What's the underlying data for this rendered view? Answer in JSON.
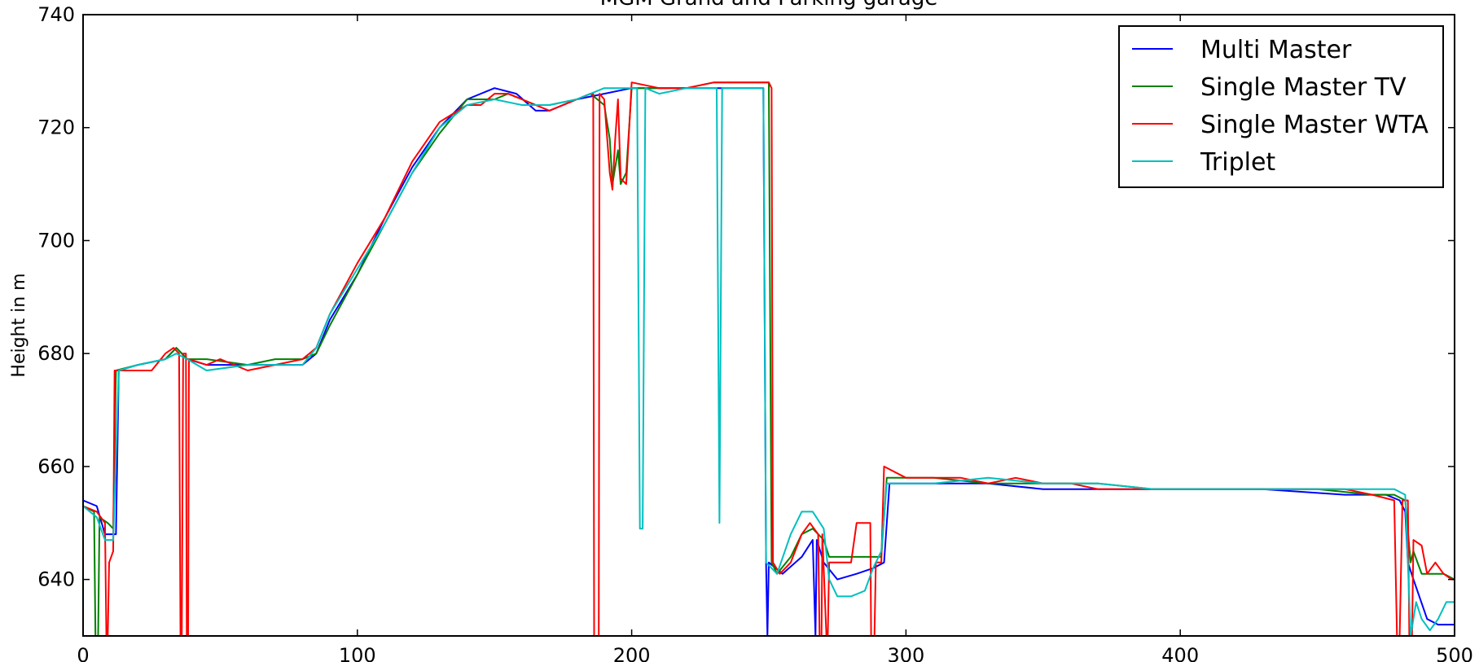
{
  "chart_data": {
    "type": "line",
    "title": "MGM Grand and Parking garage",
    "xlabel": "",
    "ylabel": "Height in m",
    "xlim": [
      0,
      500
    ],
    "ylim": [
      630,
      740
    ],
    "xticks": [
      0,
      100,
      200,
      300,
      400,
      500
    ],
    "yticks": [
      640,
      660,
      680,
      700,
      720,
      740
    ],
    "grid": false,
    "legend_position": "top-right",
    "series": [
      {
        "name": "Multi Master",
        "color": "#0000ff",
        "points": [
          [
            0,
            654
          ],
          [
            5,
            653
          ],
          [
            8,
            648
          ],
          [
            12,
            648
          ],
          [
            13,
            677
          ],
          [
            20,
            678
          ],
          [
            30,
            679
          ],
          [
            34,
            681
          ],
          [
            38,
            679
          ],
          [
            45,
            678
          ],
          [
            60,
            678
          ],
          [
            80,
            678
          ],
          [
            85,
            680
          ],
          [
            90,
            686
          ],
          [
            100,
            694
          ],
          [
            110,
            704
          ],
          [
            120,
            713
          ],
          [
            130,
            720
          ],
          [
            140,
            725
          ],
          [
            150,
            727
          ],
          [
            158,
            726
          ],
          [
            165,
            723
          ],
          [
            170,
            723
          ],
          [
            180,
            725
          ],
          [
            190,
            726
          ],
          [
            200,
            727
          ],
          [
            220,
            727
          ],
          [
            240,
            727
          ],
          [
            248,
            727
          ],
          [
            249,
            643
          ],
          [
            249.5,
            630
          ],
          [
            250,
            643
          ],
          [
            255,
            641
          ],
          [
            262,
            644
          ],
          [
            266,
            647
          ],
          [
            267,
            630
          ],
          [
            267.5,
            647
          ],
          [
            270,
            643
          ],
          [
            275,
            640
          ],
          [
            282,
            641
          ],
          [
            288,
            642
          ],
          [
            292,
            643
          ],
          [
            294,
            657
          ],
          [
            310,
            657
          ],
          [
            330,
            657
          ],
          [
            350,
            656
          ],
          [
            370,
            656
          ],
          [
            390,
            656
          ],
          [
            410,
            656
          ],
          [
            430,
            656
          ],
          [
            460,
            655
          ],
          [
            475,
            655
          ],
          [
            480,
            654
          ],
          [
            482,
            652
          ],
          [
            483,
            643
          ],
          [
            485,
            640
          ],
          [
            490,
            633
          ],
          [
            494,
            632
          ],
          [
            500,
            632
          ]
        ]
      },
      {
        "name": "Single Master TV",
        "color": "#008000",
        "points": [
          [
            0,
            653
          ],
          [
            4,
            652
          ],
          [
            4.5,
            630
          ],
          [
            5.5,
            630
          ],
          [
            6,
            651
          ],
          [
            9,
            650
          ],
          [
            11,
            649
          ],
          [
            12,
            677
          ],
          [
            20,
            678
          ],
          [
            30,
            679
          ],
          [
            34,
            681
          ],
          [
            38,
            679
          ],
          [
            45,
            679
          ],
          [
            60,
            678
          ],
          [
            70,
            679
          ],
          [
            80,
            679
          ],
          [
            85,
            680
          ],
          [
            90,
            685
          ],
          [
            100,
            694
          ],
          [
            110,
            703
          ],
          [
            120,
            712
          ],
          [
            130,
            719
          ],
          [
            140,
            725
          ],
          [
            150,
            725
          ],
          [
            155,
            726
          ],
          [
            160,
            725
          ],
          [
            165,
            724
          ],
          [
            170,
            724
          ],
          [
            180,
            725
          ],
          [
            185,
            726
          ],
          [
            190,
            724
          ],
          [
            192,
            718
          ],
          [
            193,
            710
          ],
          [
            195,
            716
          ],
          [
            196,
            710
          ],
          [
            198,
            712
          ],
          [
            200,
            727
          ],
          [
            210,
            727
          ],
          [
            220,
            727
          ],
          [
            230,
            728
          ],
          [
            240,
            728
          ],
          [
            250,
            728
          ],
          [
            251,
            643
          ],
          [
            253,
            641
          ],
          [
            258,
            644
          ],
          [
            262,
            648
          ],
          [
            266,
            649
          ],
          [
            270,
            647
          ],
          [
            272,
            644
          ],
          [
            280,
            644
          ],
          [
            288,
            644
          ],
          [
            291,
            644
          ],
          [
            293,
            658
          ],
          [
            310,
            658
          ],
          [
            330,
            657
          ],
          [
            350,
            657
          ],
          [
            370,
            657
          ],
          [
            390,
            656
          ],
          [
            410,
            656
          ],
          [
            430,
            656
          ],
          [
            450,
            656
          ],
          [
            470,
            655
          ],
          [
            478,
            655
          ],
          [
            482,
            654
          ],
          [
            484,
            643
          ],
          [
            485,
            645
          ],
          [
            488,
            641
          ],
          [
            492,
            641
          ],
          [
            496,
            641
          ],
          [
            500,
            640
          ]
        ]
      },
      {
        "name": "Single Master WTA",
        "color": "#ff0000",
        "points": [
          [
            0,
            653
          ],
          [
            5,
            652
          ],
          [
            8,
            650
          ],
          [
            8.5,
            630
          ],
          [
            9,
            630
          ],
          [
            9.5,
            643
          ],
          [
            11,
            645
          ],
          [
            11.5,
            677
          ],
          [
            20,
            677
          ],
          [
            25,
            677
          ],
          [
            30,
            680
          ],
          [
            33,
            681
          ],
          [
            35,
            680
          ],
          [
            35.5,
            630
          ],
          [
            36,
            630
          ],
          [
            36.5,
            680
          ],
          [
            37.5,
            680
          ],
          [
            37.8,
            630
          ],
          [
            38.3,
            630
          ],
          [
            38.6,
            679
          ],
          [
            45,
            678
          ],
          [
            50,
            679
          ],
          [
            60,
            677
          ],
          [
            70,
            678
          ],
          [
            80,
            679
          ],
          [
            85,
            681
          ],
          [
            90,
            687
          ],
          [
            100,
            696
          ],
          [
            110,
            704
          ],
          [
            120,
            714
          ],
          [
            130,
            721
          ],
          [
            140,
            724
          ],
          [
            145,
            724
          ],
          [
            150,
            726
          ],
          [
            155,
            726
          ],
          [
            160,
            725
          ],
          [
            170,
            723
          ],
          [
            180,
            725
          ],
          [
            185,
            726
          ],
          [
            186,
            726
          ],
          [
            186.3,
            630
          ],
          [
            187,
            630
          ],
          [
            188,
            630
          ],
          [
            188.3,
            726
          ],
          [
            190,
            725
          ],
          [
            192,
            712
          ],
          [
            193,
            709
          ],
          [
            194,
            718
          ],
          [
            195,
            725
          ],
          [
            196,
            711
          ],
          [
            198,
            710
          ],
          [
            200,
            728
          ],
          [
            210,
            727
          ],
          [
            220,
            727
          ],
          [
            230,
            728
          ],
          [
            240,
            728
          ],
          [
            250,
            728
          ],
          [
            251,
            727
          ],
          [
            251.5,
            643
          ],
          [
            254,
            641
          ],
          [
            258,
            643
          ],
          [
            262,
            648
          ],
          [
            265,
            650
          ],
          [
            268,
            648
          ],
          [
            268.5,
            630
          ],
          [
            269.2,
            630
          ],
          [
            269.5,
            648
          ],
          [
            270,
            642
          ],
          [
            271,
            630
          ],
          [
            271.5,
            630
          ],
          [
            272,
            643
          ],
          [
            276,
            643
          ],
          [
            280,
            643
          ],
          [
            282,
            650
          ],
          [
            285,
            650
          ],
          [
            287,
            650
          ],
          [
            287.3,
            630
          ],
          [
            288.5,
            630
          ],
          [
            289,
            643
          ],
          [
            291,
            643
          ],
          [
            292,
            660
          ],
          [
            300,
            658
          ],
          [
            310,
            658
          ],
          [
            320,
            658
          ],
          [
            330,
            657
          ],
          [
            340,
            658
          ],
          [
            350,
            657
          ],
          [
            360,
            657
          ],
          [
            370,
            656
          ],
          [
            380,
            656
          ],
          [
            390,
            656
          ],
          [
            400,
            656
          ],
          [
            410,
            656
          ],
          [
            420,
            656
          ],
          [
            430,
            656
          ],
          [
            440,
            656
          ],
          [
            450,
            656
          ],
          [
            460,
            656
          ],
          [
            470,
            655
          ],
          [
            478,
            654
          ],
          [
            479,
            630
          ],
          [
            480,
            630
          ],
          [
            481,
            654
          ],
          [
            483,
            654
          ],
          [
            483.5,
            630
          ],
          [
            484.5,
            630
          ],
          [
            485,
            647
          ],
          [
            488,
            646
          ],
          [
            490,
            641
          ],
          [
            493,
            643
          ],
          [
            496,
            641
          ],
          [
            499,
            640
          ],
          [
            500,
            640
          ]
        ]
      },
      {
        "name": "Triplet",
        "color": "#00bfbf",
        "points": [
          [
            0,
            653
          ],
          [
            5,
            651
          ],
          [
            8,
            647
          ],
          [
            11,
            647
          ],
          [
            13,
            677
          ],
          [
            20,
            678
          ],
          [
            30,
            679
          ],
          [
            34,
            680
          ],
          [
            38,
            679
          ],
          [
            45,
            677
          ],
          [
            60,
            678
          ],
          [
            80,
            678
          ],
          [
            85,
            681
          ],
          [
            90,
            687
          ],
          [
            100,
            695
          ],
          [
            110,
            703
          ],
          [
            120,
            712
          ],
          [
            130,
            720
          ],
          [
            140,
            724
          ],
          [
            150,
            725
          ],
          [
            160,
            724
          ],
          [
            170,
            724
          ],
          [
            180,
            725
          ],
          [
            190,
            727
          ],
          [
            200,
            727
          ],
          [
            202,
            727
          ],
          [
            203,
            649
          ],
          [
            204,
            649
          ],
          [
            205,
            727
          ],
          [
            210,
            726
          ],
          [
            220,
            727
          ],
          [
            231,
            727
          ],
          [
            232,
            650
          ],
          [
            233,
            727
          ],
          [
            240,
            727
          ],
          [
            248,
            727
          ],
          [
            249,
            643
          ],
          [
            253,
            641
          ],
          [
            258,
            648
          ],
          [
            262,
            652
          ],
          [
            266,
            652
          ],
          [
            270,
            649
          ],
          [
            272,
            640
          ],
          [
            275,
            637
          ],
          [
            280,
            637
          ],
          [
            285,
            638
          ],
          [
            288,
            642
          ],
          [
            291,
            645
          ],
          [
            293,
            657
          ],
          [
            310,
            657
          ],
          [
            330,
            658
          ],
          [
            350,
            657
          ],
          [
            370,
            657
          ],
          [
            390,
            656
          ],
          [
            410,
            656
          ],
          [
            430,
            656
          ],
          [
            460,
            656
          ],
          [
            478,
            656
          ],
          [
            482,
            655
          ],
          [
            484,
            630
          ],
          [
            486,
            636
          ],
          [
            488,
            633
          ],
          [
            491,
            631
          ],
          [
            494,
            633
          ],
          [
            497,
            636
          ],
          [
            500,
            636
          ]
        ]
      }
    ]
  }
}
